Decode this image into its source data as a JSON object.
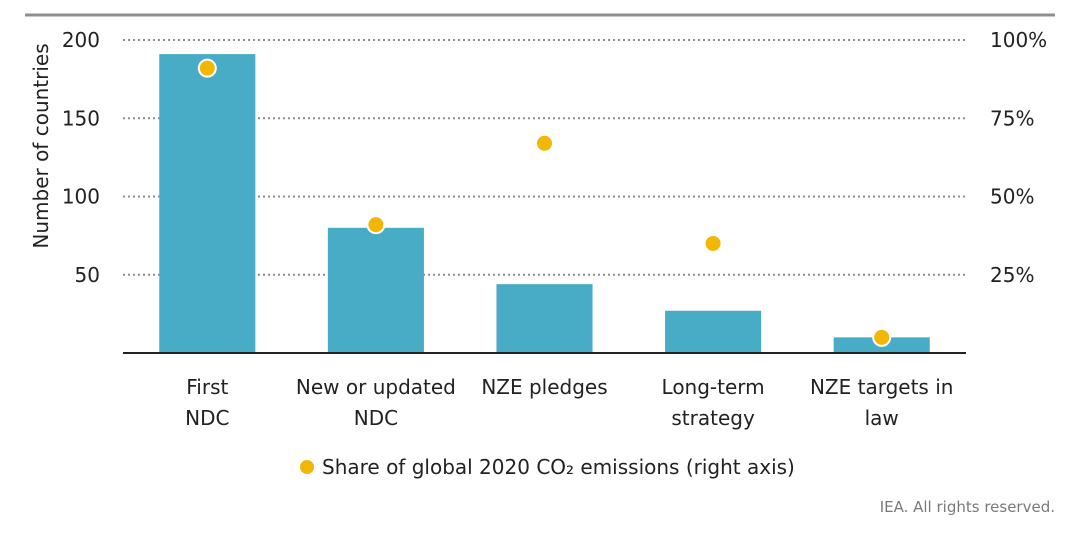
{
  "chart_data": {
    "type": "bar",
    "categories": [
      [
        "First",
        "NDC"
      ],
      [
        "New or updated",
        "NDC"
      ],
      [
        "NZE pledges"
      ],
      [
        "Long-term",
        "strategy"
      ],
      [
        "NZE targets in",
        "law"
      ]
    ],
    "ylabel": "Number of countries",
    "ylim": [
      0,
      200
    ],
    "yticks": [
      "200",
      "150",
      "100",
      "50"
    ],
    "y2lim": [
      0,
      100
    ],
    "y2ticks": [
      "100%",
      "75%",
      "50%",
      "25%"
    ],
    "grid": true,
    "series": [
      {
        "kind": "bar",
        "axis": "left",
        "values": [
          191,
          80,
          44,
          27,
          10
        ]
      },
      {
        "kind": "point",
        "axis": "right",
        "name": "Share of global 2020 CO₂ emissions (right axis)",
        "values": [
          91,
          41,
          67,
          35,
          5
        ]
      }
    ],
    "legend_position": "bottom"
  },
  "colors": {
    "bar": "#49acc6",
    "point": "#f2b705",
    "grid": "#8c8c8c",
    "axis": "#222222",
    "topline": "#8f8f8f"
  },
  "legend": {
    "label": "Share of global 2020 CO₂ emissions (right axis)"
  },
  "credit": "IEA. All rights reserved."
}
